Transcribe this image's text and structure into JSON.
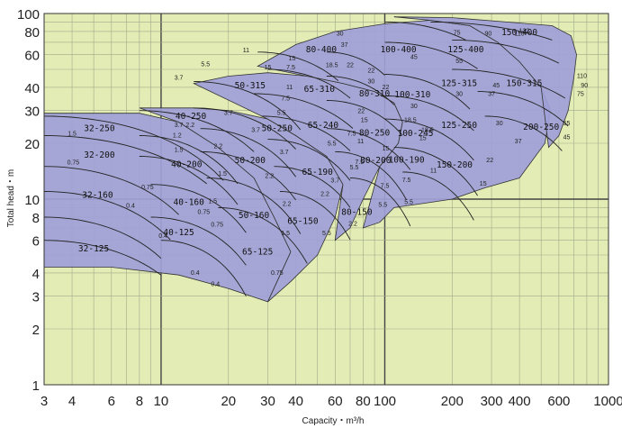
{
  "chart_data": {
    "type": "area",
    "title": "",
    "xlabel": "Capacity・m³/h",
    "ylabel": "Total head・m",
    "xscale": "log",
    "yscale": "log",
    "xlim": [
      3,
      1000
    ],
    "ylim": [
      1,
      100
    ],
    "grid": true,
    "legend": "none",
    "x_ticks": [
      "3",
      "4",
      "6",
      "8",
      "10",
      "20",
      "30",
      "40",
      "60",
      "80",
      "100",
      "200",
      "300",
      "400",
      "600",
      "1000"
    ],
    "y_ticks": [
      "1",
      "2",
      "3",
      "4",
      "6",
      "8",
      "10",
      "20",
      "30",
      "40",
      "60",
      "80",
      "100"
    ],
    "colors": {
      "plot_bg": "#e4ecb5",
      "grid": "#9fa98a",
      "region": "#9f9fd8",
      "region_edge": "#333333"
    },
    "pump_models": [
      {
        "name": "32-125",
        "x": 5.0,
        "y": 5.4
      },
      {
        "name": "32-160",
        "x": 5.2,
        "y": 10.5
      },
      {
        "name": "32-200",
        "x": 5.3,
        "y": 17.3
      },
      {
        "name": "32-250",
        "x": 5.3,
        "y": 24.0
      },
      {
        "name": "40-125",
        "x": 12.0,
        "y": 6.6
      },
      {
        "name": "40-160",
        "x": 13.3,
        "y": 9.6
      },
      {
        "name": "40-200",
        "x": 13.0,
        "y": 15.4
      },
      {
        "name": "40-250",
        "x": 13.6,
        "y": 28.0
      },
      {
        "name": "50-160",
        "x": 26.0,
        "y": 8.2
      },
      {
        "name": "50-200",
        "x": 25.0,
        "y": 16.2
      },
      {
        "name": "50-250",
        "x": 33.0,
        "y": 24.0
      },
      {
        "name": "50-315",
        "x": 25.0,
        "y": 41.0
      },
      {
        "name": "65-125",
        "x": 27.0,
        "y": 5.2
      },
      {
        "name": "65-150",
        "x": 43.0,
        "y": 7.6
      },
      {
        "name": "65-190",
        "x": 50.0,
        "y": 14.0
      },
      {
        "name": "65-240",
        "x": 53.0,
        "y": 25.0
      },
      {
        "name": "65-310",
        "x": 51.0,
        "y": 39.0
      },
      {
        "name": "80-150",
        "x": 75.0,
        "y": 8.5
      },
      {
        "name": "80-200",
        "x": 91.0,
        "y": 16.2
      },
      {
        "name": "80-250",
        "x": 90.0,
        "y": 22.8
      },
      {
        "name": "80-310",
        "x": 90.0,
        "y": 37.0
      },
      {
        "name": "80-400",
        "x": 52.0,
        "y": 64.0
      },
      {
        "name": "100-190",
        "x": 125.0,
        "y": 16.3
      },
      {
        "name": "100-245",
        "x": 137.0,
        "y": 22.6
      },
      {
        "name": "100-310",
        "x": 133.0,
        "y": 36.5
      },
      {
        "name": "100-400",
        "x": 115.0,
        "y": 64.0
      },
      {
        "name": "125-250",
        "x": 215.0,
        "y": 25.0
      },
      {
        "name": "125-315",
        "x": 215.0,
        "y": 42.0
      },
      {
        "name": "125-400",
        "x": 230.0,
        "y": 64.0
      },
      {
        "name": "150-200",
        "x": 205.0,
        "y": 15.3
      },
      {
        "name": "150-315",
        "x": 420.0,
        "y": 42.0
      },
      {
        "name": "150-400",
        "x": 400.0,
        "y": 79.0
      },
      {
        "name": "200-250",
        "x": 500.0,
        "y": 24.5
      }
    ],
    "motor_ratings_kw": [
      {
        "t": "0.75",
        "x": 4.05,
        "y": 15.4
      },
      {
        "t": "1.5",
        "x": 4.0,
        "y": 22.0
      },
      {
        "t": "0.4",
        "x": 7.3,
        "y": 9.0
      },
      {
        "t": "0.75",
        "x": 8.7,
        "y": 11.3
      },
      {
        "t": "0.4",
        "x": 10.2,
        "y": 6.2
      },
      {
        "t": "0.4",
        "x": 14.2,
        "y": 3.9
      },
      {
        "t": "0.75",
        "x": 15.5,
        "y": 8.3
      },
      {
        "t": "0.4",
        "x": 17.5,
        "y": 3.4
      },
      {
        "t": "0.75",
        "x": 17.8,
        "y": 7.1
      },
      {
        "t": "1.5",
        "x": 17.0,
        "y": 9.5
      },
      {
        "t": "1.5",
        "x": 18.8,
        "y": 13.4
      },
      {
        "t": "2.2",
        "x": 18.0,
        "y": 18.8
      },
      {
        "t": "1.2",
        "x": 11.8,
        "y": 21.5
      },
      {
        "t": "3.7",
        "x": 12.0,
        "y": 24.5
      },
      {
        "t": "2.2",
        "x": 13.5,
        "y": 24.5
      },
      {
        "t": "3.7",
        "x": 20.0,
        "y": 28.5
      },
      {
        "t": "3.7",
        "x": 12.0,
        "y": 44.0
      },
      {
        "t": "5.5",
        "x": 15.8,
        "y": 52.0
      },
      {
        "t": "0.75",
        "x": 33.0,
        "y": 3.9
      },
      {
        "t": "1.5",
        "x": 36.0,
        "y": 6.4
      },
      {
        "t": "2.2",
        "x": 36.5,
        "y": 9.2
      },
      {
        "t": "2.2",
        "x": 30.5,
        "y": 13.0
      },
      {
        "t": "3.7",
        "x": 35.5,
        "y": 17.5
      },
      {
        "t": "3.7",
        "x": 26.5,
        "y": 23.0
      },
      {
        "t": "5.5",
        "x": 34.5,
        "y": 28.5
      },
      {
        "t": "7.5",
        "x": 36.0,
        "y": 34.0
      },
      {
        "t": "11",
        "x": 37.5,
        "y": 39.0
      },
      {
        "t": "11",
        "x": 24.0,
        "y": 62.0
      },
      {
        "t": "15",
        "x": 38.5,
        "y": 56.0
      },
      {
        "t": "5.5",
        "x": 55.0,
        "y": 6.4
      },
      {
        "t": "2.2",
        "x": 54.0,
        "y": 10.4
      },
      {
        "t": "3.7",
        "x": 60.0,
        "y": 12.3
      },
      {
        "t": "5.5",
        "x": 58.0,
        "y": 19.5
      },
      {
        "t": "7.5",
        "x": 71.0,
        "y": 22.0
      },
      {
        "t": "18.5",
        "x": 58.0,
        "y": 51.5
      },
      {
        "t": "22",
        "x": 70.0,
        "y": 51.5
      },
      {
        "t": "30",
        "x": 63.0,
        "y": 76.0
      },
      {
        "t": "37",
        "x": 66.0,
        "y": 66.0
      },
      {
        "t": "2.2",
        "x": 72.0,
        "y": 7.2
      },
      {
        "t": "5.5",
        "x": 73.0,
        "y": 14.5
      },
      {
        "t": "7.5",
        "x": 77.0,
        "y": 15.5
      },
      {
        "t": "11",
        "x": 78.0,
        "y": 20.0
      },
      {
        "t": "22",
        "x": 78.5,
        "y": 29.0
      },
      {
        "t": "15",
        "x": 81.0,
        "y": 26.0
      },
      {
        "t": "22",
        "x": 87.0,
        "y": 48.0
      },
      {
        "t": "30",
        "x": 87.0,
        "y": 42.0
      },
      {
        "t": "5.5",
        "x": 98.0,
        "y": 9.1
      },
      {
        "t": "7.5",
        "x": 100.0,
        "y": 11.5
      },
      {
        "t": "15",
        "x": 101.0,
        "y": 18.3
      },
      {
        "t": "22",
        "x": 101.0,
        "y": 39.0
      },
      {
        "t": "5.5",
        "x": 128.0,
        "y": 9.4
      },
      {
        "t": "7.5",
        "x": 125.0,
        "y": 12.4
      },
      {
        "t": "11",
        "x": 165.0,
        "y": 13.9
      },
      {
        "t": "15",
        "x": 148.0,
        "y": 20.8
      },
      {
        "t": "18.5",
        "x": 130.0,
        "y": 26.0
      },
      {
        "t": "30",
        "x": 135.0,
        "y": 31.0
      },
      {
        "t": "45",
        "x": 135.0,
        "y": 57.0
      },
      {
        "t": "75",
        "x": 210.0,
        "y": 77.0
      },
      {
        "t": "55",
        "x": 215.0,
        "y": 54.0
      },
      {
        "t": "15",
        "x": 275.0,
        "y": 11.8
      },
      {
        "t": "22",
        "x": 295.0,
        "y": 15.8
      },
      {
        "t": "30",
        "x": 215.0,
        "y": 36.0
      },
      {
        "t": "37",
        "x": 300.0,
        "y": 36.0
      },
      {
        "t": "45",
        "x": 315.0,
        "y": 40.0
      },
      {
        "t": "30",
        "x": 325.0,
        "y": 25.0
      },
      {
        "t": "37",
        "x": 395.0,
        "y": 20.0
      },
      {
        "t": "90",
        "x": 290.0,
        "y": 76.0
      },
      {
        "t": "110",
        "x": 400.0,
        "y": 76.0
      },
      {
        "t": "132",
        "x": 420.0,
        "y": 78.5
      },
      {
        "t": "45",
        "x": 650.0,
        "y": 21.0
      },
      {
        "t": "55",
        "x": 650.0,
        "y": 25.0
      },
      {
        "t": "75",
        "x": 750.0,
        "y": 36.0
      },
      {
        "t": "90",
        "x": 780.0,
        "y": 40.0
      },
      {
        "t": "110",
        "x": 760.0,
        "y": 45.0
      },
      {
        "t": "18.5",
        "x": 155.0,
        "y": 23.0
      },
      {
        "t": "15",
        "x": 30.0,
        "y": 50.0
      },
      {
        "t": "7.5",
        "x": 38.0,
        "y": 50.0
      },
      {
        "t": "1.5",
        "x": 12.0,
        "y": 18.0
      }
    ],
    "header_text": "(50Hz)"
  }
}
